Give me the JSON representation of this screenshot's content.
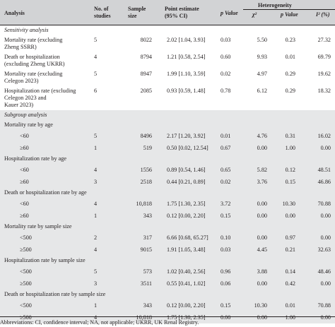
{
  "header": {
    "analysis": "Analysis",
    "studies": "No. of\nstudies",
    "sample": "Sample\nsize",
    "estimate": "Point estimate\n(95% CI)",
    "pvalue": "p Value",
    "heterogeneity": "Heterogeneity",
    "chi": "χ²",
    "het_p": "p Value",
    "i2": "I² (%)"
  },
  "sections": [
    {
      "title": "Sensitivity analysis",
      "rows": [
        {
          "label": "Mortality rate (excluding\nZheng SSRR)",
          "n": "5",
          "size": "8022",
          "est": "2.02 [1.04, 3.93]",
          "p": "0.03",
          "chi": "5.50",
          "hp": "0.23",
          "i2": "27.32"
        },
        {
          "label": "Death or hospitalization\n(excluding Zheng UKRR)",
          "n": "4",
          "size": "8794",
          "est": "1.21 [0.58, 2.54]",
          "p": "0.60",
          "chi": "9.93",
          "hp": "0.01",
          "i2": "69.79"
        },
        {
          "label": "Mortality rate (excluding\nCelegon 2023)",
          "n": "5",
          "size": "8947",
          "est": "1.99 [1.10, 3.59]",
          "p": "0.02",
          "chi": "4.97",
          "hp": "0.29",
          "i2": "19.62"
        },
        {
          "label": "Hospitalization rate (excluding\nCelegon 2023 and\nKauer 2023)",
          "n": "6",
          "size": "2085",
          "est": "0.93 [0.59, 1.48]",
          "p": "0.78",
          "chi": "6.12",
          "hp": "0.29",
          "i2": "18.32"
        }
      ]
    },
    {
      "title": "Subgroup analysis",
      "groups": [
        {
          "title": "Mortality rate by age",
          "rows": [
            {
              "label": "<60",
              "n": "5",
              "size": "8496",
              "est": "2.17 [1.20, 3.92]",
              "p": "0.01",
              "chi": "4.76",
              "hp": "0.31",
              "i2": "16.02"
            },
            {
              "label": "≥60",
              "n": "1",
              "size": "519",
              "est": "0.50 [0.02, 12.54]",
              "p": "0.67",
              "chi": "0.00",
              "hp": "1.00",
              "i2": "0.00"
            }
          ]
        },
        {
          "title": "Hospitalization rate by age",
          "rows": [
            {
              "label": "<60",
              "n": "4",
              "size": "1556",
              "est": "0.89 [0.54, 1.46]",
              "p": "0.65",
              "chi": "5.82",
              "hp": "0.12",
              "i2": "48.51"
            },
            {
              "label": "≥60",
              "n": "3",
              "size": "2518",
              "est": "0.44 [0.21, 0.89]",
              "p": "0.02",
              "chi": "3.76",
              "hp": "0.15",
              "i2": "46.86"
            }
          ]
        },
        {
          "title": "Death or hospitalization rate by age",
          "rows": [
            {
              "label": "<60",
              "n": "4",
              "size": "10,818",
              "est": "1.75 [1.30, 2.35]",
              "p": "3.72",
              "chi": "0.00",
              "hp": "10.30",
              "i2": "70.88"
            },
            {
              "label": "≥60",
              "n": "1",
              "size": "343",
              "est": "0.12 [0.00, 2.20]",
              "p": "0.15",
              "chi": "0.00",
              "hp": "0.00",
              "i2": "0.00"
            }
          ]
        },
        {
          "title": "Mortality rate by sample size",
          "rows": [
            {
              "label": "<500",
              "n": "2",
              "size": "317",
              "est": "6.66 [0.68, 65.27]",
              "p": "0.10",
              "chi": "0.00",
              "hp": "0.97",
              "i2": "0.00"
            },
            {
              "label": "≥500",
              "n": "4",
              "size": "9015",
              "est": "1.91 [1.05, 3.48]",
              "p": "0.03",
              "chi": "4.45",
              "hp": "0.21",
              "i2": "32.63"
            }
          ]
        },
        {
          "title": "Hospitalization rate by sample size",
          "rows": [
            {
              "label": "<500",
              "n": "5",
              "size": "573",
              "est": "1.02 [0.40, 2.56]",
              "p": "0.96",
              "chi": "3.88",
              "hp": "0.14",
              "i2": "48.46"
            },
            {
              "label": "≥500",
              "n": "3",
              "size": "3511",
              "est": "0.55 [0.41, 1.02]",
              "p": "0.06",
              "chi": "0.00",
              "hp": "0.42",
              "i2": "0.00"
            }
          ]
        },
        {
          "title": "Death or hospitalization rate by sample size",
          "rows": [
            {
              "label": "<500",
              "n": "1",
              "size": "343",
              "est": "0.12 [0.00, 2.20]",
              "p": "0.15",
              "chi": "10.30",
              "hp": "0.01",
              "i2": "70.88"
            },
            {
              "label": "≥500",
              "n": "4",
              "size": "10,818",
              "est": "1.75 [1.30, 2.35]",
              "p": "0.00",
              "chi": "0.00",
              "hp": "1.00",
              "i2": "0.00"
            }
          ]
        }
      ]
    }
  ],
  "footnote": "Abbreviations: CI, confidence interval; NA, not applicable; UKRR, UK Renal Registry."
}
